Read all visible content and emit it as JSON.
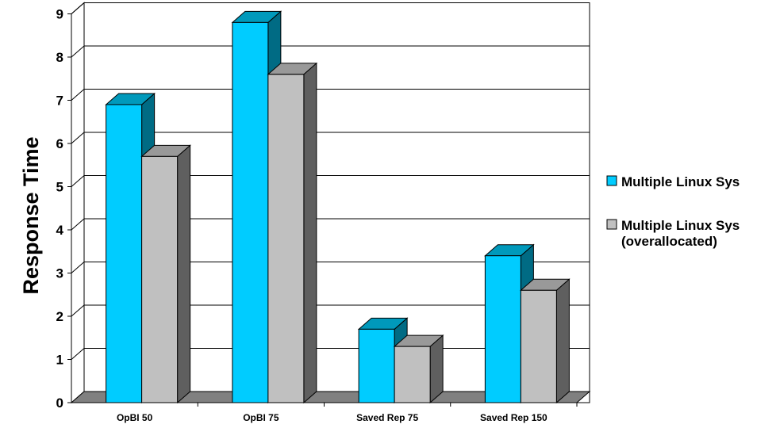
{
  "chart_data": {
    "type": "bar",
    "categories": [
      "OpBI 50",
      "OpBI 75",
      "Saved Rep 75",
      "Saved Rep 150"
    ],
    "series": [
      {
        "name": "Multiple Linux Sys",
        "name_lines": [
          "Multiple Linux Sys"
        ],
        "values": [
          6.9,
          8.8,
          1.7,
          3.4
        ],
        "color": "#00ccff",
        "side_color": "#006b84",
        "top_color": "#0099bb"
      },
      {
        "name": "Multiple Linux Sys (overallocated)",
        "name_lines": [
          "Multiple Linux Sys",
          "(overallocated)"
        ],
        "values": [
          5.7,
          7.6,
          1.3,
          2.6
        ],
        "color": "#c0c0c0",
        "side_color": "#5f5f5f",
        "top_color": "#999999"
      }
    ],
    "title": "",
    "xlabel": "",
    "ylabel": "Response Time",
    "ylim": [
      0,
      9
    ],
    "yticks": [
      "0",
      "1",
      "2",
      "3",
      "4",
      "5",
      "6",
      "7",
      "8",
      "9"
    ],
    "grid": true,
    "three_d": true,
    "legend_position": "right"
  }
}
